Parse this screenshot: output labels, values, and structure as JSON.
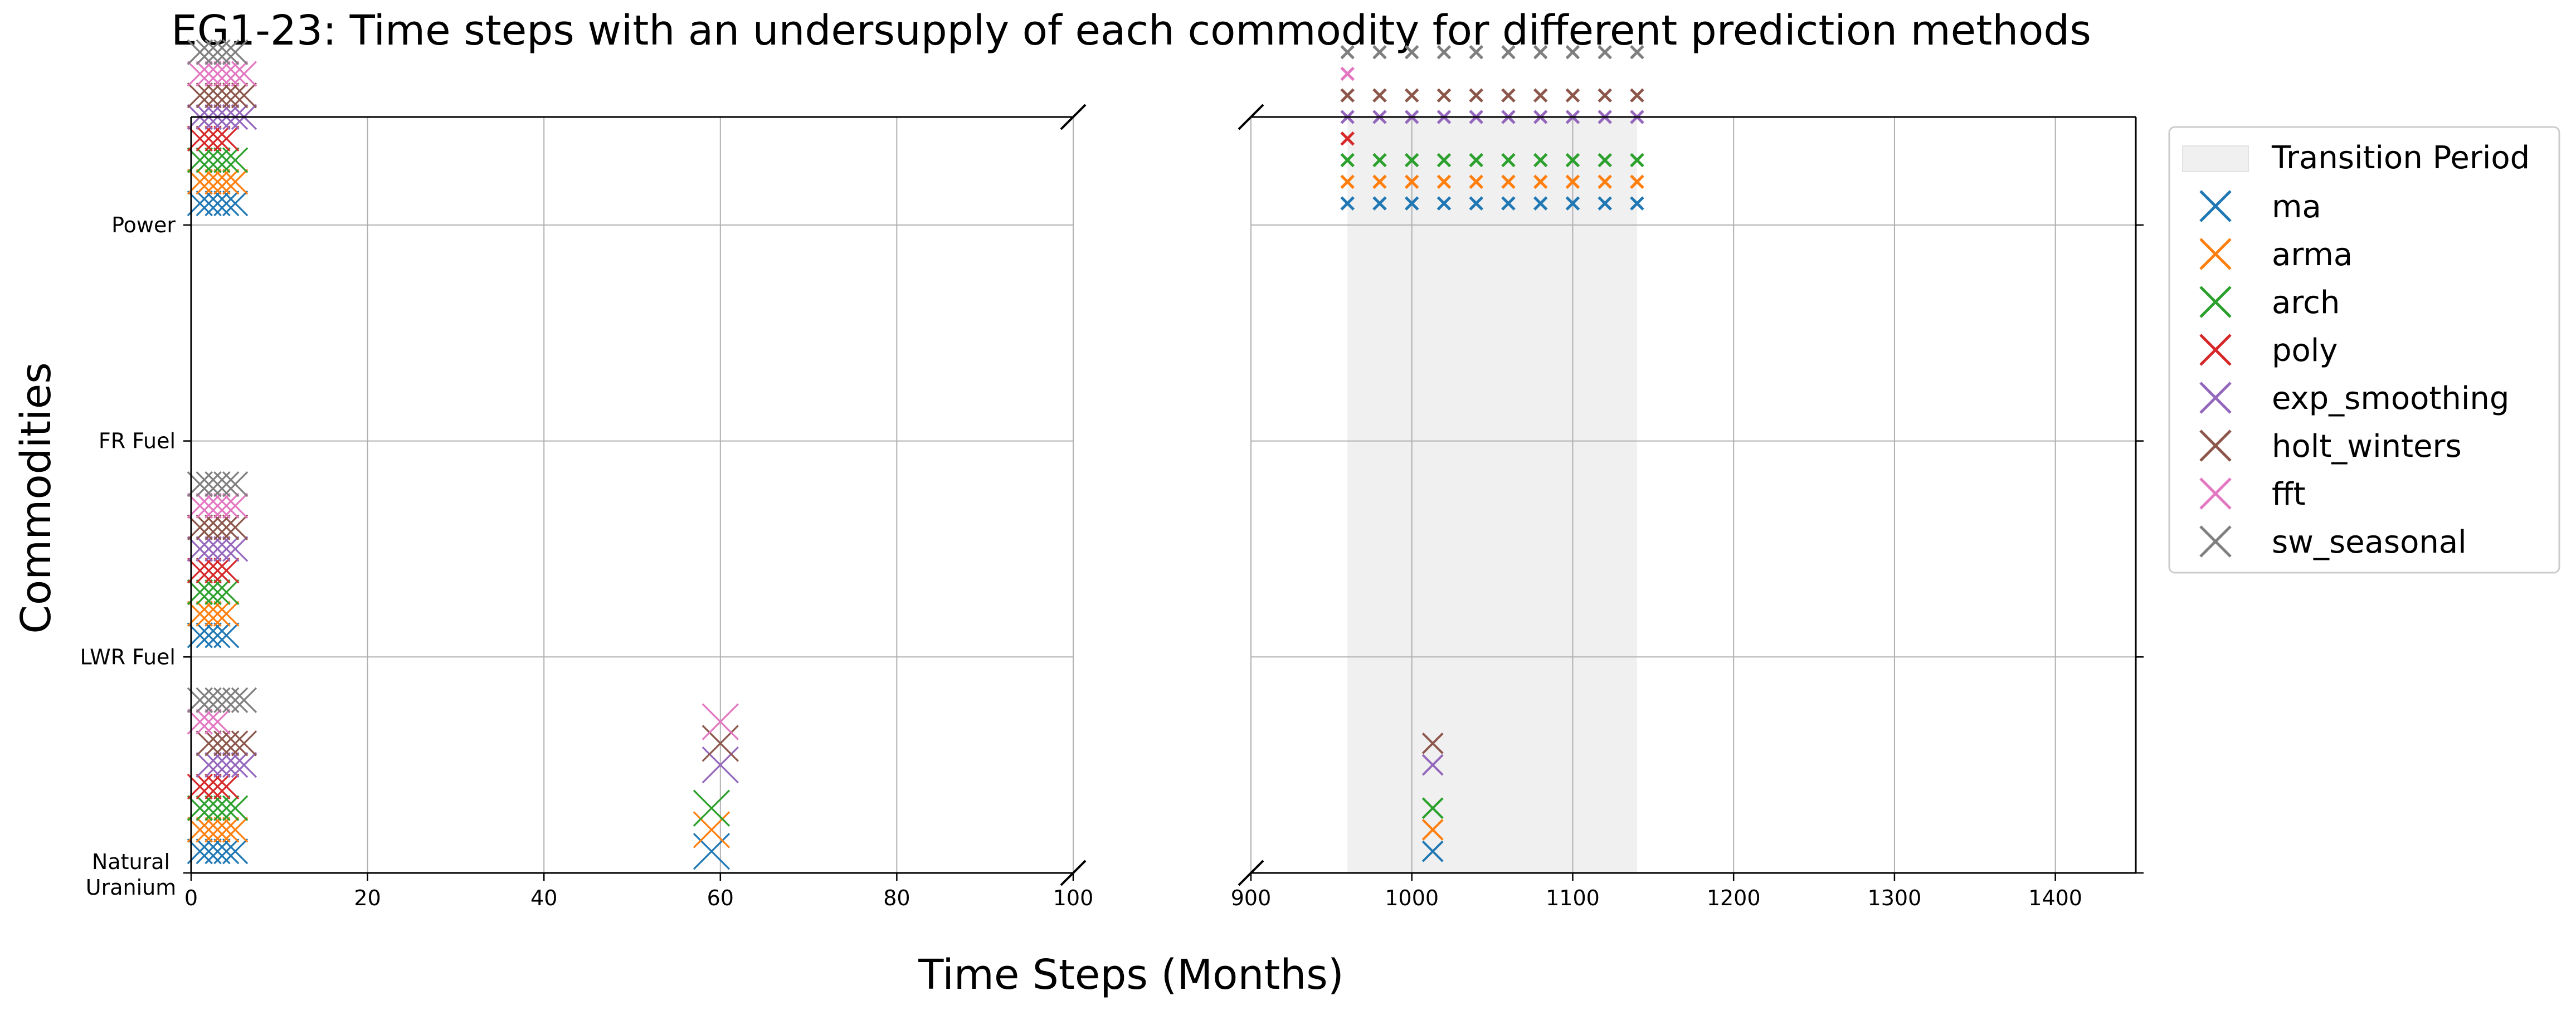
{
  "chart_data": {
    "type": "scatter",
    "title": "EG1-23: Time steps with an undersupply of each commodity for different prediction methods",
    "xlabel": "Time Steps (Months)",
    "ylabel": "Commodities",
    "broken_x_axis": true,
    "x_segments": [
      {
        "xlim": [
          0,
          100
        ],
        "xticks": [
          "0",
          "20",
          "40",
          "60",
          "80",
          "100"
        ]
      },
      {
        "xlim": [
          900,
          1450
        ],
        "xticks": [
          "900",
          "1000",
          "1100",
          "1200",
          "1300",
          "1400"
        ]
      }
    ],
    "categories": [
      "Natural Uranium",
      "LWR Fuel",
      "FR Fuel",
      "Power"
    ],
    "category_tick_labels": [
      [
        "Natural",
        "Uranium"
      ],
      [
        "LWR Fuel"
      ],
      [
        "FR Fuel"
      ],
      [
        "Power"
      ]
    ],
    "grid": true,
    "legend_placement": "outside upper right",
    "transition_period": {
      "label": "Transition Period",
      "x_range": [
        960,
        1140
      ],
      "color": "#f0f0f0"
    },
    "series": [
      {
        "name": "ma",
        "color": "#1f77b4",
        "offset": 0.1,
        "points": [
          {
            "commodity": "Natural Uranium",
            "x": [
              1,
              2,
              3,
              4,
              5,
              59,
              1013
            ]
          },
          {
            "commodity": "LWR Fuel",
            "x": [
              1,
              2,
              3,
              4
            ]
          },
          {
            "commodity": "Power",
            "x": [
              1,
              2,
              3,
              4,
              5,
              960,
              980,
              1000,
              1020,
              1040,
              1060,
              1080,
              1100,
              1120,
              1140
            ]
          }
        ]
      },
      {
        "name": "arma",
        "color": "#ff7f0e",
        "offset": 0.2,
        "points": [
          {
            "commodity": "Natural Uranium",
            "x": [
              1,
              2,
              3,
              4,
              5,
              59,
              1013
            ]
          },
          {
            "commodity": "LWR Fuel",
            "x": [
              1,
              2,
              3,
              4
            ]
          },
          {
            "commodity": "Power",
            "x": [
              1,
              2,
              3,
              4,
              5,
              960,
              980,
              1000,
              1020,
              1040,
              1060,
              1080,
              1100,
              1120,
              1140
            ]
          }
        ]
      },
      {
        "name": "arch",
        "color": "#2ca02c",
        "offset": 0.3,
        "points": [
          {
            "commodity": "Natural Uranium",
            "x": [
              1,
              2,
              3,
              4,
              5,
              59,
              1013
            ]
          },
          {
            "commodity": "LWR Fuel",
            "x": [
              1,
              2,
              3,
              4
            ]
          },
          {
            "commodity": "Power",
            "x": [
              1,
              2,
              3,
              4,
              5,
              960,
              980,
              1000,
              1020,
              1040,
              1060,
              1080,
              1100,
              1120,
              1140
            ]
          }
        ]
      },
      {
        "name": "poly",
        "color": "#d62728",
        "offset": 0.4,
        "points": [
          {
            "commodity": "Natural Uranium",
            "x": [
              1,
              2,
              3,
              4
            ]
          },
          {
            "commodity": "LWR Fuel",
            "x": [
              1,
              2,
              3,
              4
            ]
          },
          {
            "commodity": "Power",
            "x": [
              1,
              2,
              3,
              4,
              960
            ]
          }
        ]
      },
      {
        "name": "exp_smoothing",
        "color": "#9467bd",
        "offset": 0.5,
        "points": [
          {
            "commodity": "Natural Uranium",
            "x": [
              2,
              3,
              4,
              5,
              6,
              60,
              1013
            ]
          },
          {
            "commodity": "LWR Fuel",
            "x": [
              1,
              2,
              3,
              4,
              5
            ]
          },
          {
            "commodity": "Power",
            "x": [
              1,
              2,
              3,
              4,
              5,
              6,
              960,
              980,
              1000,
              1020,
              1040,
              1060,
              1080,
              1100,
              1120,
              1140
            ]
          }
        ]
      },
      {
        "name": "holt_winters",
        "color": "#8c564b",
        "offset": 0.6,
        "points": [
          {
            "commodity": "Natural Uranium",
            "x": [
              2,
              3,
              4,
              5,
              6,
              60,
              1013
            ]
          },
          {
            "commodity": "LWR Fuel",
            "x": [
              1,
              2,
              3,
              4,
              5
            ]
          },
          {
            "commodity": "Power",
            "x": [
              1,
              2,
              3,
              4,
              5,
              6,
              960,
              980,
              1000,
              1020,
              1040,
              1060,
              1080,
              1100,
              1120,
              1140
            ]
          }
        ]
      },
      {
        "name": "fft",
        "color": "#e377c2",
        "offset": 0.7,
        "points": [
          {
            "commodity": "Natural Uranium",
            "x": [
              1,
              2,
              3,
              60
            ]
          },
          {
            "commodity": "LWR Fuel",
            "x": [
              1,
              2,
              3,
              4,
              5
            ]
          },
          {
            "commodity": "Power",
            "x": [
              1,
              2,
              3,
              4,
              5,
              6,
              960
            ]
          }
        ]
      },
      {
        "name": "sw_seasonal",
        "color": "#7f7f7f",
        "offset": 0.8,
        "points": [
          {
            "commodity": "Natural Uranium",
            "x": [
              1,
              2,
              3,
              4,
              5,
              6
            ]
          },
          {
            "commodity": "LWR Fuel",
            "x": [
              1,
              2,
              3,
              4,
              5
            ]
          },
          {
            "commodity": "Power",
            "x": [
              1,
              2,
              3,
              4,
              5,
              960,
              980,
              1000,
              1020,
              1040,
              1060,
              1080,
              1100,
              1120,
              1140
            ]
          }
        ]
      }
    ]
  }
}
